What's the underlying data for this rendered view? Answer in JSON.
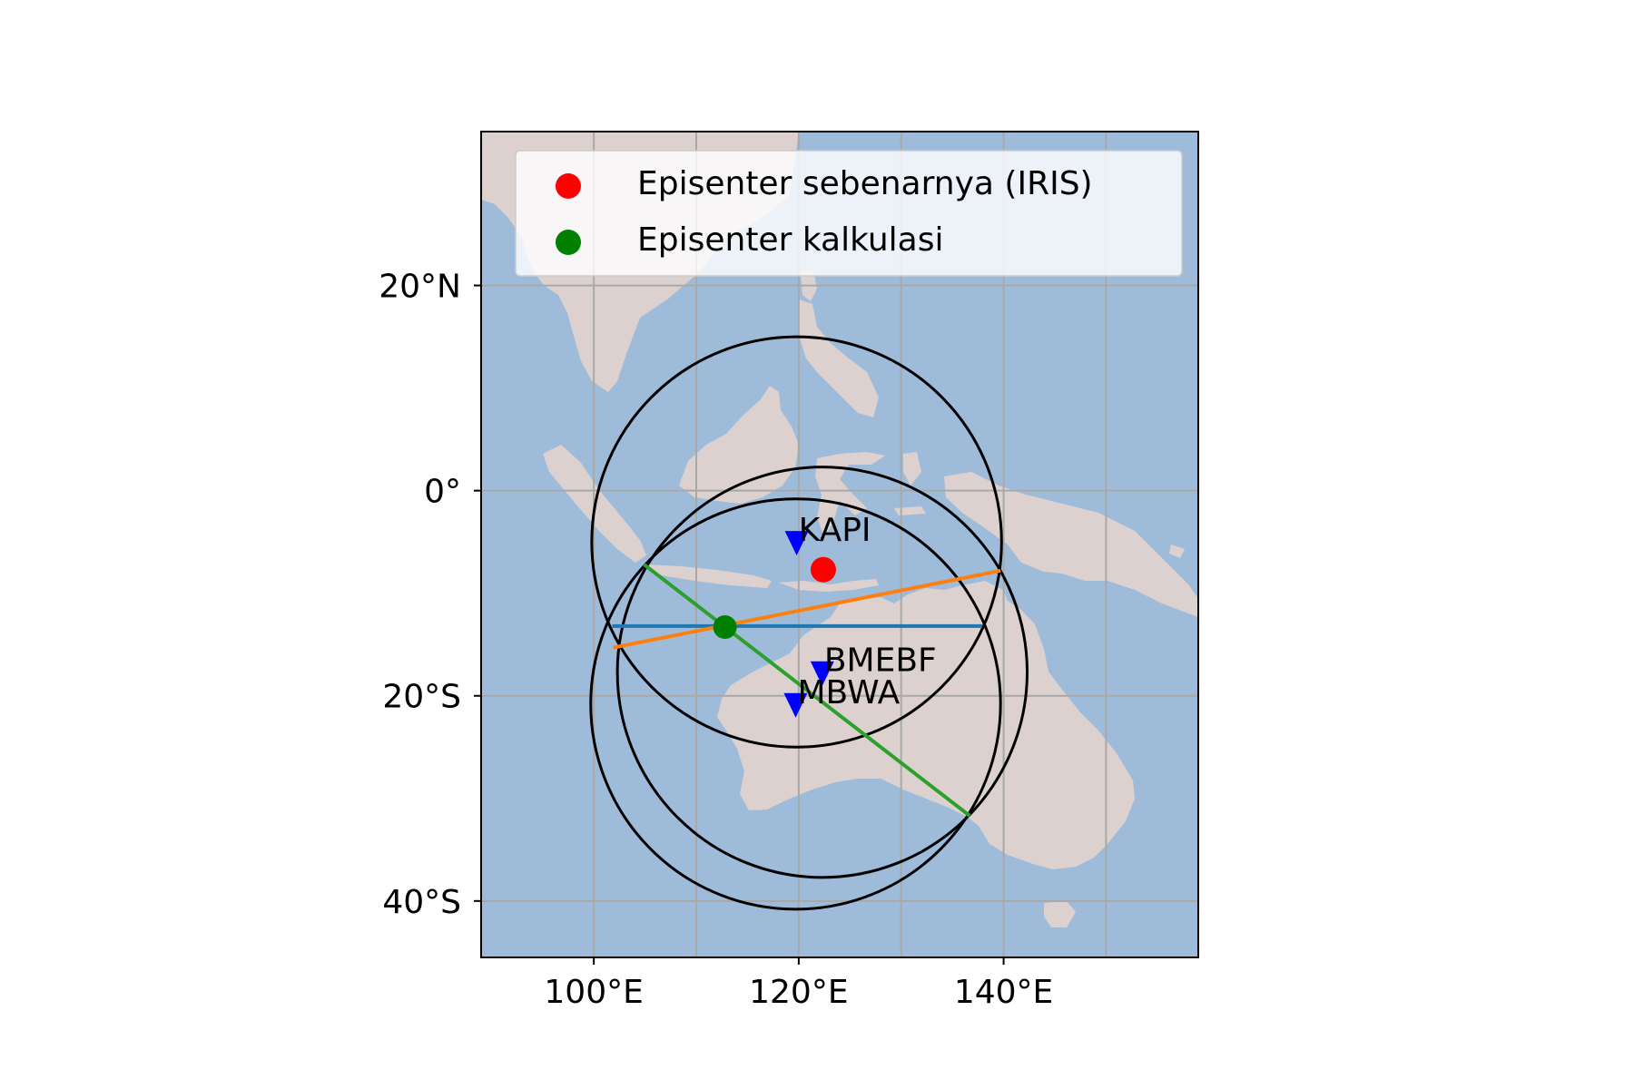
{
  "map": {
    "axis": {
      "lon_range": [
        89,
        159
      ],
      "lat_range": [
        -45.5,
        35
      ],
      "lon_ticks": [
        {
          "value": 100,
          "label": "100°E"
        },
        {
          "value": 120,
          "label": "120°E"
        },
        {
          "value": 140,
          "label": "140°E"
        }
      ],
      "lat_ticks": [
        {
          "value": 20,
          "label": "20°N"
        },
        {
          "value": 0,
          "label": "0°"
        },
        {
          "value": -20,
          "label": "20°S"
        },
        {
          "value": -40,
          "label": "40°S"
        }
      ],
      "gridlines_lon": [
        100,
        110,
        120,
        130,
        140,
        150
      ],
      "gridlines_lat": [
        20,
        0,
        -20,
        -40
      ],
      "grid": true
    },
    "colors": {
      "ocean": "#9ebcd9",
      "land": "#ddd1cf",
      "grid": "#a8a8a8",
      "circle": "#000000",
      "station": "#0000ff",
      "iris_epicenter": "#ff0000",
      "calc_epicenter": "#008000",
      "line_blue": "#1f77b4",
      "line_orange": "#ff7f0e",
      "line_green": "#2ca02c"
    },
    "legend": {
      "placement": "upper-left",
      "entries": [
        {
          "label": "Episenter sebenarnya (IRIS)",
          "color": "#ff0000"
        },
        {
          "label": "Episenter kalkulasi",
          "color": "#008000"
        }
      ]
    },
    "stations": [
      {
        "name": "KAPI",
        "lon": 119.8,
        "lat": -5.0
      },
      {
        "name": "BMEBF",
        "lon": 122.3,
        "lat": -17.7
      },
      {
        "name": "MBWA",
        "lon": 119.7,
        "lat": -20.8
      }
    ],
    "iris_epicenter": {
      "lon": 122.4,
      "lat": -7.7
    },
    "calculated_epicenter": {
      "lon": 112.8,
      "lat": -13.3
    },
    "distance_circles": [
      {
        "station": "KAPI",
        "center_lon": 119.8,
        "center_lat": -5.0,
        "radius_deg": 20.0
      },
      {
        "station": "BMEBF",
        "center_lon": 122.3,
        "center_lat": -17.7,
        "radius_deg": 20.0
      },
      {
        "station": "MBWA",
        "center_lon": 119.7,
        "center_lat": -20.8,
        "radius_deg": 20.0
      }
    ],
    "chord_lines": [
      {
        "color": "#1f77b4",
        "points": [
          [
            101.8,
            -13.2
          ],
          [
            137.9,
            -13.2
          ]
        ]
      },
      {
        "color": "#ff7f0e",
        "points": [
          [
            101.9,
            -15.3
          ],
          [
            139.7,
            -7.8
          ]
        ]
      },
      {
        "color": "#2ca02c",
        "points": [
          [
            104.9,
            -7.2
          ],
          [
            136.7,
            -31.7
          ]
        ]
      }
    ]
  }
}
